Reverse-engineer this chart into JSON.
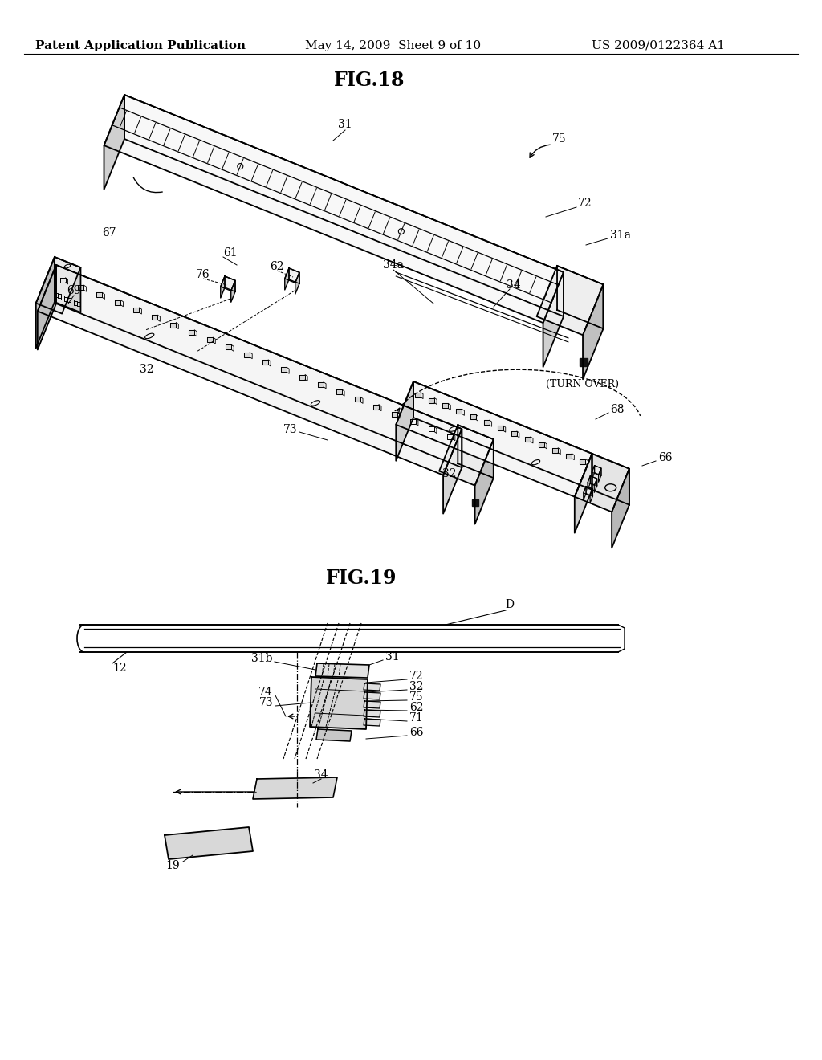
{
  "background_color": "#ffffff",
  "header_left": "Patent Application Publication",
  "header_center": "May 14, 2009  Sheet 9 of 10",
  "header_right": "US 2009/0122364 A1",
  "fig18_title": "FIG.18",
  "fig19_title": "FIG.19",
  "line_color": "#000000",
  "text_color": "#000000",
  "font_size_header": 11,
  "font_size_fig_title": 16,
  "font_size_label": 10
}
